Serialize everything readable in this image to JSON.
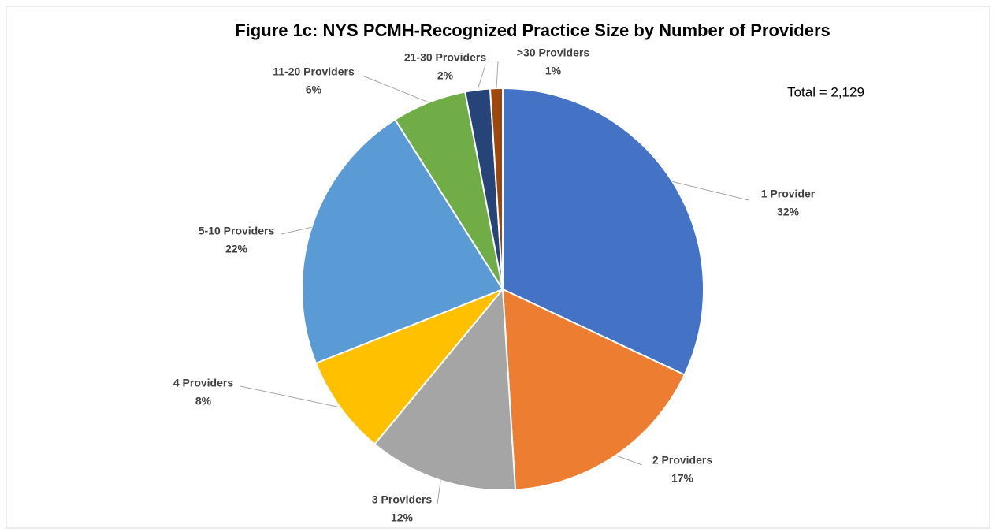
{
  "chart_data": {
    "type": "pie",
    "title": "Figure 1c: NYS PCMH-Recognized Practice Size by Number of Providers",
    "annotation": "Total = 2,129",
    "categories": [
      "1 Provider",
      "2 Providers",
      "3 Providers",
      "4 Providers",
      "5-10 Providers",
      "11-20 Providers",
      "21-30 Providers",
      ">30 Providers"
    ],
    "values": [
      32,
      17,
      12,
      8,
      22,
      6,
      2,
      1
    ],
    "value_labels": [
      "32%",
      "17%",
      "12%",
      "8%",
      "22%",
      "6%",
      "2%",
      "1%"
    ],
    "colors": [
      "#4472c4",
      "#ed7d31",
      "#a5a5a5",
      "#ffc000",
      "#5b9bd5",
      "#70ad47",
      "#264478",
      "#9e480e"
    ]
  }
}
